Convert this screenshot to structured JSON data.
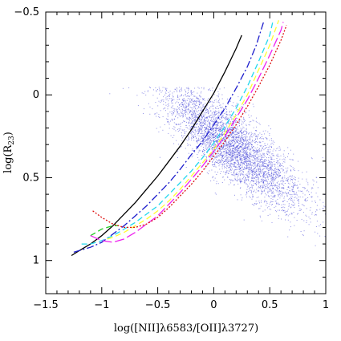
{
  "chart_data": {
    "type": "scatter",
    "title": "",
    "xlabel": "log([NII]λ6583/[OII]λ3727)",
    "ylabel": "log(R23)",
    "ylabel_main": "log(R",
    "ylabel_sub": "23",
    "ylabel_close": ")",
    "xlim": [
      -1.5,
      1.0
    ],
    "ylim": [
      1.2,
      -0.5
    ],
    "x_ticks": [
      -1.5,
      -1,
      -0.5,
      0,
      0.5,
      1
    ],
    "x_tick_labels": [
      "−1.5",
      "−1",
      "−0.5",
      "0",
      "0.5",
      "1"
    ],
    "y_ticks": [
      -0.5,
      0,
      0.5,
      1
    ],
    "y_tick_labels": [
      "−0.5",
      "0",
      "0.5",
      "1"
    ],
    "grid": false,
    "scatter_cloud": {
      "color": "#3b3bd6",
      "center": [
        0.15,
        0.3
      ],
      "x_spread": 0.32,
      "y_spread": 0.2,
      "approx_range_x": [
        -1.1,
        1.0
      ],
      "approx_range_y": [
        -0.05,
        1.0
      ]
    },
    "series": [
      {
        "color": "#000000",
        "style": "solid",
        "x": [
          -1.27,
          -1.2,
          -1.1,
          -1.0,
          -0.9,
          -0.8,
          -0.7,
          -0.6,
          -0.5,
          -0.4,
          -0.3,
          -0.2,
          -0.1,
          0.0,
          0.1,
          0.2,
          0.25
        ],
        "y": [
          0.97,
          0.94,
          0.9,
          0.85,
          0.79,
          0.72,
          0.65,
          0.57,
          0.49,
          0.4,
          0.31,
          0.21,
          0.1,
          -0.01,
          -0.14,
          -0.28,
          -0.36
        ]
      },
      {
        "color": "#1c1ccc",
        "style": "dashdot",
        "x": [
          -1.25,
          -1.2,
          -1.1,
          -1.0,
          -0.9,
          -0.8,
          -0.7,
          -0.6,
          -0.5,
          -0.4,
          -0.3,
          -0.2,
          -0.1,
          0.0,
          0.1,
          0.2,
          0.3,
          0.38,
          0.45
        ],
        "y": [
          0.95,
          0.94,
          0.92,
          0.89,
          0.84,
          0.79,
          0.73,
          0.67,
          0.6,
          0.53,
          0.45,
          0.36,
          0.28,
          0.18,
          0.08,
          -0.04,
          -0.17,
          -0.3,
          -0.45
        ]
      },
      {
        "color": "#22d8ee",
        "style": "dashed",
        "x": [
          -1.18,
          -1.1,
          -1.0,
          -0.9,
          -0.8,
          -0.7,
          -0.6,
          -0.5,
          -0.4,
          -0.3,
          -0.2,
          -0.1,
          0.0,
          0.1,
          0.2,
          0.3,
          0.4,
          0.5,
          0.53
        ],
        "y": [
          0.9,
          0.9,
          0.88,
          0.85,
          0.81,
          0.77,
          0.72,
          0.67,
          0.6,
          0.53,
          0.46,
          0.38,
          0.29,
          0.19,
          0.08,
          -0.05,
          -0.2,
          -0.36,
          -0.45
        ]
      },
      {
        "color": "#ffff33",
        "style": "dashed",
        "x": [
          -0.95,
          -0.9,
          -0.8,
          -0.7,
          -0.6,
          -0.5,
          -0.4,
          -0.3,
          -0.2,
          -0.1,
          0.0,
          0.1,
          0.2,
          0.3,
          0.4,
          0.5,
          0.58
        ],
        "y": [
          0.87,
          0.86,
          0.83,
          0.79,
          0.75,
          0.7,
          0.64,
          0.57,
          0.49,
          0.41,
          0.33,
          0.23,
          0.12,
          0.0,
          -0.15,
          -0.3,
          -0.45
        ]
      },
      {
        "color": "#22cc22",
        "style": "dashed",
        "x": [
          -1.1,
          -1.05,
          -1.0,
          -0.95,
          -0.9,
          -0.85
        ],
        "y": [
          0.85,
          0.83,
          0.81,
          0.8,
          0.79,
          0.79
        ]
      },
      {
        "color": "#ee22ee",
        "style": "longdash",
        "x": [
          -1.1,
          -1.0,
          -0.9,
          -0.8,
          -0.7,
          -0.6,
          -0.5,
          -0.4,
          -0.3,
          -0.2,
          -0.1,
          0.0,
          0.1,
          0.2,
          0.3,
          0.4,
          0.5,
          0.6,
          0.62
        ],
        "y": [
          0.85,
          0.88,
          0.89,
          0.87,
          0.83,
          0.78,
          0.73,
          0.66,
          0.59,
          0.51,
          0.43,
          0.34,
          0.25,
          0.14,
          0.03,
          -0.1,
          -0.24,
          -0.39,
          -0.44
        ]
      },
      {
        "color": "#dd1111",
        "style": "dotted",
        "x": [
          -1.08,
          -1.0,
          -0.9,
          -0.8,
          -0.7,
          -0.6,
          -0.5,
          -0.4,
          -0.3,
          -0.2,
          -0.1,
          0.0,
          0.1,
          0.2,
          0.3,
          0.4,
          0.5,
          0.6,
          0.65
        ],
        "y": [
          0.7,
          0.74,
          0.78,
          0.8,
          0.8,
          0.78,
          0.74,
          0.68,
          0.61,
          0.54,
          0.46,
          0.37,
          0.28,
          0.18,
          0.07,
          -0.05,
          -0.18,
          -0.33,
          -0.42
        ]
      }
    ]
  }
}
